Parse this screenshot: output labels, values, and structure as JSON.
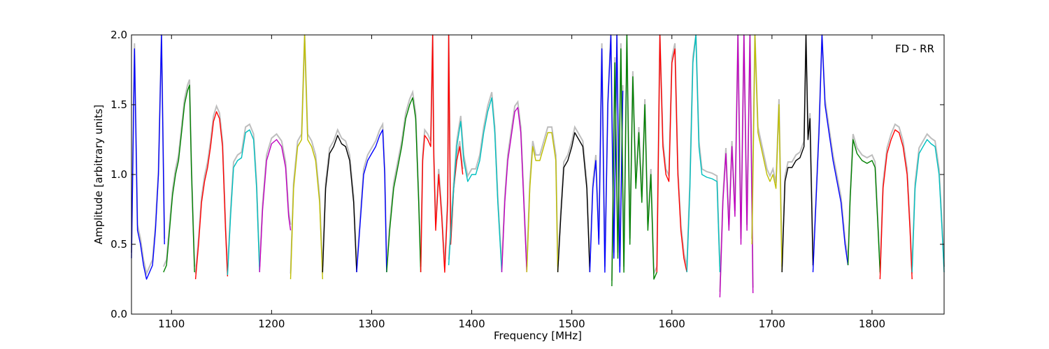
{
  "chart_data": {
    "type": "line",
    "title": "",
    "xlabel": "Frequency [MHz]",
    "ylabel": "Amplitude [arbitrary units]",
    "xlim": [
      1060,
      1872
    ],
    "ylim": [
      0.0,
      2.0
    ],
    "x_ticks": [
      1100,
      1200,
      1300,
      1400,
      1500,
      1600,
      1700,
      1800
    ],
    "x_tick_labels": [
      "1100",
      "1200",
      "1300",
      "1400",
      "1500",
      "1600",
      "1700",
      "1800"
    ],
    "y_ticks": [
      0.0,
      0.5,
      1.0,
      1.5,
      2.0
    ],
    "y_tick_labels": [
      "0.0",
      "0.5",
      "1.0",
      "1.5",
      "2.0"
    ],
    "grid": false,
    "annotation": "FD - RR",
    "background_trace_color": "#bebebe",
    "series": [
      {
        "color": "#0000ff",
        "x": [
          1060,
          1063,
          1066,
          1069,
          1072,
          1075,
          1078,
          1081,
          1084,
          1087,
          1090,
          1093
        ],
        "y": [
          0.4,
          1.9,
          0.6,
          0.5,
          0.35,
          0.25,
          0.3,
          0.35,
          0.6,
          1.0,
          2.0,
          0.5
        ]
      },
      {
        "color": "#008000",
        "x": [
          1092,
          1095,
          1098,
          1101,
          1104,
          1107,
          1110,
          1113,
          1116,
          1118,
          1120,
          1123
        ],
        "y": [
          0.3,
          0.35,
          0.6,
          0.85,
          1.0,
          1.1,
          1.3,
          1.5,
          1.6,
          1.64,
          1.0,
          0.3
        ]
      },
      {
        "color": "#ff0000",
        "x": [
          1124,
          1127,
          1130,
          1133,
          1136,
          1139,
          1142,
          1145,
          1148,
          1151,
          1154,
          1156
        ],
        "y": [
          0.25,
          0.5,
          0.8,
          0.95,
          1.05,
          1.2,
          1.38,
          1.45,
          1.4,
          1.2,
          0.6,
          0.27
        ]
      },
      {
        "color": "#00bfbf",
        "x": [
          1156,
          1159,
          1162,
          1166,
          1170,
          1174,
          1178,
          1182,
          1185,
          1188
        ],
        "y": [
          0.28,
          0.7,
          1.05,
          1.1,
          1.12,
          1.3,
          1.32,
          1.25,
          0.9,
          0.3
        ]
      },
      {
        "color": "#bf00bf",
        "x": [
          1188,
          1191,
          1195,
          1200,
          1205,
          1210,
          1214,
          1217,
          1219
        ],
        "y": [
          0.3,
          0.75,
          1.1,
          1.22,
          1.25,
          1.2,
          1.05,
          0.7,
          0.6
        ]
      },
      {
        "color": "#bfbf00",
        "x": [
          1219,
          1222,
          1226,
          1230,
          1233,
          1236,
          1240,
          1244,
          1248,
          1251
        ],
        "y": [
          0.25,
          0.9,
          1.2,
          1.25,
          2.0,
          1.25,
          1.2,
          1.1,
          0.8,
          0.25
        ]
      },
      {
        "color": "#000000",
        "x": [
          1251,
          1254,
          1258,
          1262,
          1266,
          1270,
          1274,
          1278,
          1282,
          1285
        ],
        "y": [
          0.3,
          0.9,
          1.15,
          1.2,
          1.28,
          1.22,
          1.2,
          1.1,
          0.8,
          0.3
        ]
      },
      {
        "color": "#0000ff",
        "x": [
          1285,
          1288,
          1292,
          1296,
          1300,
          1304,
          1308,
          1311,
          1313,
          1315
        ],
        "y": [
          0.3,
          0.6,
          1.0,
          1.1,
          1.15,
          1.2,
          1.28,
          1.32,
          1.0,
          0.3
        ]
      },
      {
        "color": "#008000",
        "x": [
          1315,
          1318,
          1322,
          1326,
          1330,
          1334,
          1338,
          1341,
          1344,
          1347,
          1349
        ],
        "y": [
          0.3,
          0.6,
          0.9,
          1.05,
          1.2,
          1.4,
          1.5,
          1.55,
          1.4,
          0.8,
          0.3
        ]
      },
      {
        "color": "#ff0000",
        "x": [
          1349,
          1351,
          1353,
          1356,
          1359,
          1361,
          1362,
          1364,
          1367,
          1370,
          1373,
          1376,
          1377,
          1379,
          1382,
          1385,
          1388,
          1391
        ],
        "y": [
          0.3,
          1.1,
          1.28,
          1.25,
          1.2,
          2.0,
          1.15,
          0.6,
          1.0,
          0.7,
          0.3,
          0.8,
          2.0,
          0.5,
          0.9,
          1.1,
          1.2,
          1.0
        ]
      },
      {
        "color": "#00bfbf",
        "x": [
          1377,
          1381,
          1385,
          1389,
          1392,
          1396,
          1400,
          1404,
          1408,
          1412,
          1416,
          1420,
          1423,
          1426,
          1430
        ],
        "y": [
          0.35,
          0.8,
          1.2,
          1.38,
          1.1,
          0.95,
          1.0,
          1.0,
          1.1,
          1.3,
          1.45,
          1.55,
          1.3,
          0.8,
          0.3
        ]
      },
      {
        "color": "#bf00bf",
        "x": [
          1430,
          1433,
          1436,
          1440,
          1443,
          1446,
          1449,
          1452,
          1455
        ],
        "y": [
          0.3,
          0.8,
          1.1,
          1.3,
          1.45,
          1.48,
          1.3,
          0.8,
          0.3
        ]
      },
      {
        "color": "#bfbf00",
        "x": [
          1455,
          1458,
          1461,
          1464,
          1468,
          1472,
          1476,
          1480,
          1484,
          1486
        ],
        "y": [
          0.3,
          0.9,
          1.2,
          1.1,
          1.1,
          1.2,
          1.3,
          1.3,
          1.1,
          0.3
        ]
      },
      {
        "color": "#000000",
        "x": [
          1486,
          1489,
          1492,
          1496,
          1500,
          1503,
          1507,
          1511,
          1515,
          1518
        ],
        "y": [
          0.3,
          0.7,
          1.05,
          1.1,
          1.2,
          1.3,
          1.25,
          1.2,
          0.9,
          0.3
        ]
      },
      {
        "color": "#0000ff",
        "x": [
          1518,
          1521,
          1524,
          1527,
          1530,
          1533,
          1536,
          1539,
          1542,
          1545,
          1548,
          1551
        ],
        "y": [
          0.3,
          0.9,
          1.1,
          0.5,
          1.9,
          0.3,
          1.5,
          2.0,
          0.4,
          2.0,
          0.3,
          1.6
        ]
      },
      {
        "color": "#008000",
        "x": [
          1540,
          1543,
          1546,
          1549,
          1552,
          1555,
          1558,
          1561,
          1564,
          1567,
          1570,
          1573,
          1576,
          1579,
          1582,
          1585
        ],
        "y": [
          0.2,
          1.8,
          0.4,
          1.9,
          0.3,
          2.0,
          0.5,
          1.7,
          0.9,
          1.3,
          0.8,
          1.5,
          0.6,
          1.0,
          0.25,
          0.3
        ]
      },
      {
        "color": "#ff0000",
        "x": [
          1585,
          1588,
          1591,
          1594,
          1597,
          1600,
          1603,
          1606,
          1609,
          1612,
          1615
        ],
        "y": [
          0.3,
          2.0,
          1.2,
          1.0,
          0.95,
          1.8,
          1.9,
          1.0,
          0.6,
          0.4,
          0.3
        ]
      },
      {
        "color": "#00bfbf",
        "x": [
          1615,
          1618,
          1621,
          1624,
          1627,
          1630,
          1635,
          1640,
          1645,
          1648
        ],
        "y": [
          0.3,
          0.9,
          1.8,
          2.0,
          1.2,
          1.0,
          0.98,
          0.97,
          0.95,
          0.3
        ]
      },
      {
        "color": "#bf00bf",
        "x": [
          1648,
          1651,
          1654,
          1657,
          1660,
          1663,
          1666,
          1669,
          1672,
          1675,
          1678,
          1681
        ],
        "y": [
          0.12,
          0.8,
          1.15,
          0.6,
          1.2,
          0.7,
          2.0,
          0.5,
          2.0,
          0.6,
          2.0,
          0.15
        ]
      },
      {
        "color": "#bfbf00",
        "x": [
          1680,
          1683,
          1686,
          1689,
          1692,
          1695,
          1698,
          1701,
          1704,
          1707,
          1710
        ],
        "y": [
          0.5,
          2.0,
          1.3,
          1.2,
          1.1,
          1.0,
          0.95,
          1.0,
          0.9,
          1.5,
          0.3
        ]
      },
      {
        "color": "#000000",
        "x": [
          1710,
          1713,
          1716,
          1720,
          1724,
          1728,
          1732,
          1734,
          1736,
          1738,
          1741
        ],
        "y": [
          0.3,
          0.95,
          1.05,
          1.05,
          1.1,
          1.12,
          1.2,
          2.0,
          1.25,
          1.4,
          0.35
        ]
      },
      {
        "color": "#0000ff",
        "x": [
          1741,
          1744,
          1747,
          1750,
          1753,
          1757,
          1761,
          1765,
          1769,
          1773,
          1776
        ],
        "y": [
          0.3,
          0.8,
          1.3,
          2.0,
          1.5,
          1.3,
          1.1,
          0.95,
          0.8,
          0.5,
          0.35
        ]
      },
      {
        "color": "#008000",
        "x": [
          1776,
          1778,
          1781,
          1785,
          1790,
          1795,
          1800,
          1803,
          1806,
          1808
        ],
        "y": [
          0.35,
          0.8,
          1.25,
          1.15,
          1.1,
          1.08,
          1.1,
          1.05,
          0.6,
          0.3
        ]
      },
      {
        "color": "#ff0000",
        "x": [
          1808,
          1811,
          1815,
          1819,
          1823,
          1827,
          1831,
          1835,
          1838,
          1840
        ],
        "y": [
          0.25,
          0.9,
          1.15,
          1.25,
          1.32,
          1.3,
          1.2,
          1.0,
          0.6,
          0.25
        ]
      },
      {
        "color": "#00bfbf",
        "x": [
          1840,
          1843,
          1847,
          1851,
          1855,
          1859,
          1863,
          1867,
          1870,
          1872
        ],
        "y": [
          0.3,
          0.9,
          1.15,
          1.2,
          1.25,
          1.22,
          1.2,
          1.0,
          0.6,
          0.3
        ]
      }
    ]
  }
}
